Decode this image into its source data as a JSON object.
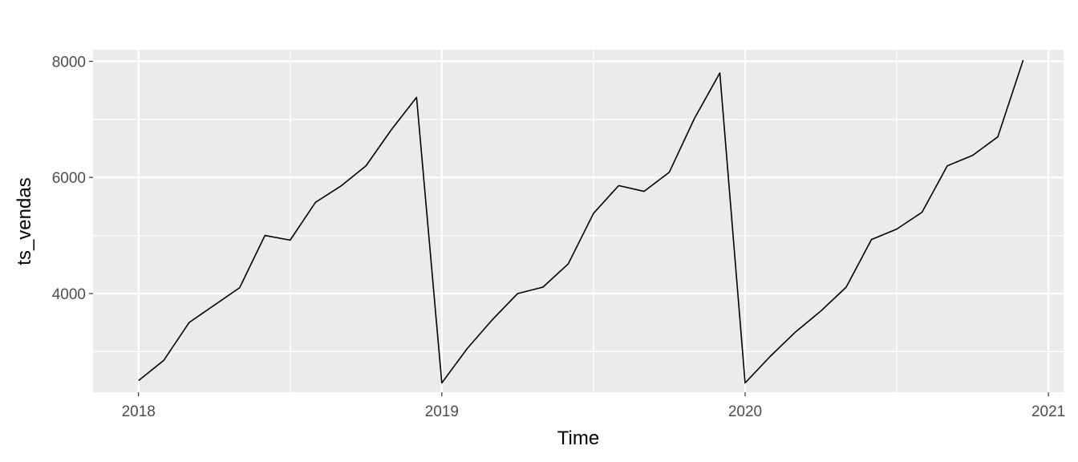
{
  "chart_data": {
    "type": "line",
    "xlabel": "Time",
    "ylabel": "ts_vendas",
    "xlim": [
      2017.85,
      2021.05
    ],
    "ylim": [
      2300,
      8200
    ],
    "x_ticks": [
      2018,
      2019,
      2020,
      2021
    ],
    "x_tick_labels": [
      "2018",
      "2019",
      "2020",
      "2021"
    ],
    "y_ticks": [
      4000,
      6000,
      8000
    ],
    "y_tick_labels": [
      "4000",
      "6000",
      "8000"
    ],
    "grid": true,
    "background": "#ebebeb",
    "line_color": "#000000",
    "series": [
      {
        "x": [
          2018.0,
          2018.0833,
          2018.1667,
          2018.25,
          2018.3333,
          2018.4167,
          2018.5,
          2018.5833,
          2018.6667,
          2018.75,
          2018.8333,
          2018.9167,
          2019.0,
          2019.0833,
          2019.1667,
          2019.25,
          2019.3333,
          2019.4167,
          2019.5,
          2019.5833,
          2019.6667,
          2019.75,
          2019.8333,
          2019.9167,
          2020.0,
          2020.0833,
          2020.1667,
          2020.25,
          2020.3333,
          2020.4167,
          2020.5,
          2020.5833,
          2020.6667,
          2020.75,
          2020.8333,
          2020.9167
        ],
        "values": [
          2500,
          2850,
          3500,
          3800,
          4100,
          5000,
          4920,
          5570,
          5850,
          6200,
          6820,
          7380,
          2460,
          3050,
          3550,
          4000,
          4110,
          4510,
          5380,
          5860,
          5760,
          6090,
          7020,
          7800,
          2460,
          2920,
          3340,
          3700,
          4110,
          4930,
          5110,
          5400,
          6200,
          6380,
          6700,
          8020
        ]
      }
    ]
  }
}
